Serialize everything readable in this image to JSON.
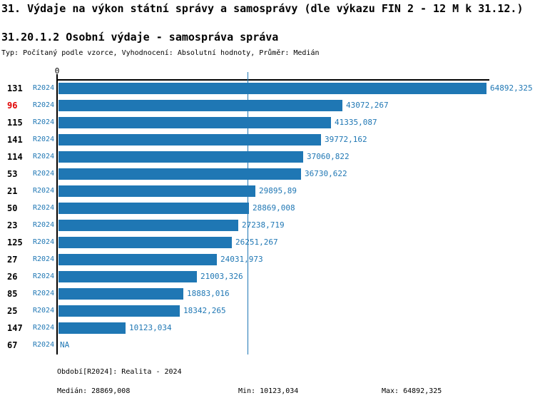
{
  "colors": {
    "bar": "#1f77b4",
    "accent_text": "#1f77b4",
    "highlight_code": "#e00000",
    "axis": "#000000"
  },
  "chart_data": {
    "type": "bar",
    "orientation": "horizontal",
    "title": "31. Výdaje na výkon státní správy a samosprávy (dle výkazu FIN 2 - 12 M k 31.12.)",
    "subtitle": "31.20.1.2 Osobní výdaje - samospráva správa",
    "meta": "Typ: Počítaný podle vzorce, Vyhodnocení: Absolutní hodnoty, Průměr: Medián",
    "axis_zero_label": "0",
    "xlim": [
      0,
      64892.325
    ],
    "median_value": 28869.008,
    "grid": "median-line-only",
    "legend": "none",
    "rows": [
      {
        "code": "131",
        "period": "R2024",
        "value": 64892.325,
        "label": "64892,325",
        "highlight": false
      },
      {
        "code": "96",
        "period": "R2024",
        "value": 43072.267,
        "label": "43072,267",
        "highlight": true
      },
      {
        "code": "115",
        "period": "R2024",
        "value": 41335.087,
        "label": "41335,087",
        "highlight": false
      },
      {
        "code": "141",
        "period": "R2024",
        "value": 39772.162,
        "label": "39772,162",
        "highlight": false
      },
      {
        "code": "114",
        "period": "R2024",
        "value": 37060.822,
        "label": "37060,822",
        "highlight": false
      },
      {
        "code": "53",
        "period": "R2024",
        "value": 36730.622,
        "label": "36730,622",
        "highlight": false
      },
      {
        "code": "21",
        "period": "R2024",
        "value": 29895.89,
        "label": "29895,89",
        "highlight": false
      },
      {
        "code": "50",
        "period": "R2024",
        "value": 28869.008,
        "label": "28869,008",
        "highlight": false
      },
      {
        "code": "23",
        "period": "R2024",
        "value": 27238.719,
        "label": "27238,719",
        "highlight": false
      },
      {
        "code": "125",
        "period": "R2024",
        "value": 26251.267,
        "label": "26251,267",
        "highlight": false
      },
      {
        "code": "27",
        "period": "R2024",
        "value": 24031.973,
        "label": "24031,973",
        "highlight": false
      },
      {
        "code": "26",
        "period": "R2024",
        "value": 21003.326,
        "label": "21003,326",
        "highlight": false
      },
      {
        "code": "85",
        "period": "R2024",
        "value": 18883.016,
        "label": "18883,016",
        "highlight": false
      },
      {
        "code": "25",
        "period": "R2024",
        "value": 18342.265,
        "label": "18342,265",
        "highlight": false
      },
      {
        "code": "147",
        "period": "R2024",
        "value": 10123.034,
        "label": "10123,034",
        "highlight": false
      },
      {
        "code": "67",
        "period": "R2024",
        "value": null,
        "label": "NA",
        "highlight": false
      }
    ],
    "footer": {
      "period_line": "Období[R2024]: Realita - 2024",
      "median_line": "Medián: 28869,008",
      "min_line": "Min: 10123,034",
      "max_line": "Max: 64892,325"
    }
  }
}
